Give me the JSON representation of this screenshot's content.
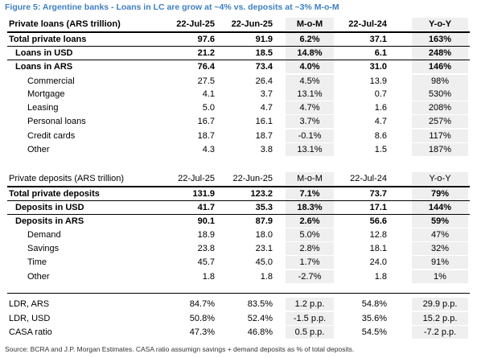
{
  "title": "Figure 5: Argentine banks - Loans in LC are grow at ~4% vs. deposits at ~3% M-o-M",
  "columns": [
    "22-Jul-25",
    "22-Jun-25",
    "M-o-M",
    "22-Jul-24",
    "Y-o-Y"
  ],
  "loans": {
    "header": "Private loans (ARS trillion)",
    "rows": [
      {
        "label": "Total private loans",
        "values": [
          "97.6",
          "91.9",
          "6.2%",
          "37.1",
          "163%"
        ]
      },
      {
        "label": "Loans in USD",
        "values": [
          "21.2",
          "18.5",
          "14.8%",
          "6.1",
          "248%"
        ]
      },
      {
        "label": "Loans in ARS",
        "values": [
          "76.4",
          "73.4",
          "4.0%",
          "31.0",
          "146%"
        ]
      },
      {
        "label": "Commercial",
        "values": [
          "27.5",
          "26.4",
          "4.5%",
          "13.9",
          "98%"
        ]
      },
      {
        "label": "Mortgage",
        "values": [
          "4.1",
          "3.7",
          "13.1%",
          "0.7",
          "530%"
        ]
      },
      {
        "label": "Leasing",
        "values": [
          "5.0",
          "4.7",
          "4.7%",
          "1.6",
          "208%"
        ]
      },
      {
        "label": "Personal loans",
        "values": [
          "16.7",
          "16.1",
          "3.7%",
          "4.7",
          "257%"
        ]
      },
      {
        "label": "Credit cards",
        "values": [
          "18.7",
          "18.7",
          "-0.1%",
          "8.6",
          "117%"
        ]
      },
      {
        "label": "Other",
        "values": [
          "4.3",
          "3.8",
          "13.1%",
          "1.5",
          "187%"
        ]
      }
    ]
  },
  "deposits": {
    "header": "Private deposits (ARS trillion)",
    "rows": [
      {
        "label": "Total private deposits",
        "values": [
          "131.9",
          "123.2",
          "7.1%",
          "73.7",
          "79%"
        ]
      },
      {
        "label": "Deposits in USD",
        "values": [
          "41.7",
          "35.3",
          "18.3%",
          "17.1",
          "144%"
        ]
      },
      {
        "label": "Deposits in ARS",
        "values": [
          "90.1",
          "87.9",
          "2.6%",
          "56.6",
          "59%"
        ]
      },
      {
        "label": "Demand",
        "values": [
          "18.9",
          "18.0",
          "5.0%",
          "12.8",
          "47%"
        ]
      },
      {
        "label": "Savings",
        "values": [
          "23.8",
          "23.1",
          "2.8%",
          "18.1",
          "32%"
        ]
      },
      {
        "label": "Time",
        "values": [
          "45.7",
          "45.0",
          "1.7%",
          "24.0",
          "91%"
        ]
      },
      {
        "label": "Other",
        "values": [
          "1.8",
          "1.8",
          "-2.7%",
          "1.8",
          "1%"
        ]
      }
    ]
  },
  "ratios": {
    "rows": [
      {
        "label": "LDR, ARS",
        "values": [
          "84.7%",
          "83.5%",
          "1.2 p.p.",
          "54.8%",
          "29.9 p.p."
        ]
      },
      {
        "label": "LDR, USD",
        "values": [
          "50.8%",
          "52.4%",
          "-1.5 p.p.",
          "35.6%",
          "15.2 p.p."
        ]
      },
      {
        "label": "CASA ratio",
        "values": [
          "47.3%",
          "46.8%",
          "0.5 p.p.",
          "54.5%",
          "-7.2 p.p."
        ]
      }
    ]
  },
  "source": "Source: BCRA and J.P. Morgan Estimates. CASA ratio assumign savings + demand deposits as % of total deposits."
}
